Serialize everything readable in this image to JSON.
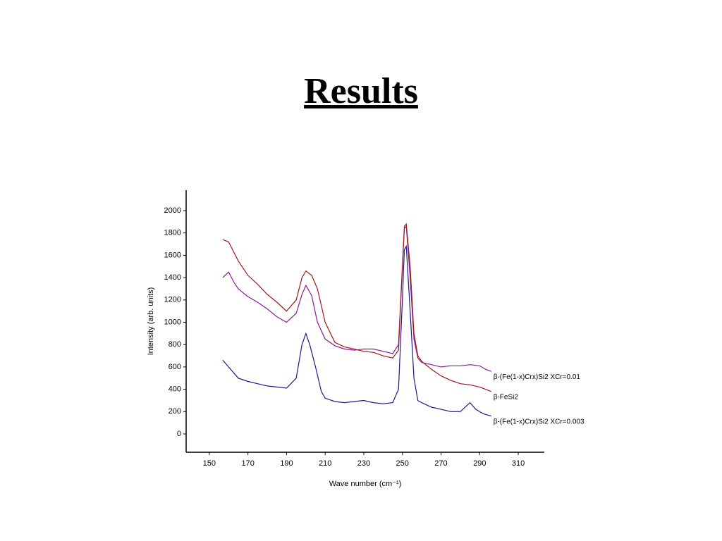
{
  "title": "Results",
  "chart_data": {
    "type": "line",
    "xlabel": "Wave number (cm⁻¹)",
    "ylabel": "Intensity (arb. units)",
    "xlim": [
      138,
      323.5
    ],
    "ylim": [
      -164,
      2183
    ],
    "xticks": [
      150,
      170,
      190,
      210,
      230,
      250,
      270,
      290,
      310
    ],
    "yticks": [
      0,
      200,
      400,
      600,
      800,
      1000,
      1200,
      1400,
      1600,
      1800,
      2000
    ],
    "series": [
      {
        "name": "β-(Fe(1-x)Crx)Si2 XCr=0.01",
        "color": "#8b1a9b",
        "x": [
          157,
          160,
          163,
          165,
          170,
          175,
          180,
          185,
          190,
          195,
          198,
          200,
          203,
          206,
          210,
          215,
          220,
          225,
          230,
          235,
          240,
          245,
          248,
          250,
          251,
          252,
          254,
          256,
          258,
          260,
          265,
          270,
          275,
          280,
          285,
          290,
          293,
          296
        ],
        "values": [
          1400,
          1450,
          1350,
          1300,
          1230,
          1180,
          1120,
          1050,
          1000,
          1080,
          1250,
          1330,
          1240,
          1000,
          850,
          790,
          760,
          750,
          760,
          760,
          740,
          720,
          800,
          1500,
          1840,
          1860,
          1400,
          850,
          680,
          640,
          620,
          600,
          610,
          610,
          620,
          610,
          580,
          560
        ]
      },
      {
        "name": "β-FeSi2",
        "color": "#a01818",
        "x": [
          157,
          160,
          165,
          170,
          175,
          180,
          185,
          190,
          195,
          198,
          200,
          203,
          206,
          210,
          215,
          220,
          225,
          230,
          235,
          240,
          245,
          248,
          250,
          251,
          252,
          254,
          256,
          258,
          260,
          265,
          270,
          275,
          280,
          285,
          290,
          293,
          296
        ],
        "values": [
          1740,
          1720,
          1550,
          1420,
          1340,
          1250,
          1180,
          1100,
          1200,
          1400,
          1460,
          1420,
          1300,
          1000,
          820,
          780,
          760,
          740,
          730,
          700,
          680,
          750,
          1500,
          1860,
          1880,
          1500,
          900,
          700,
          650,
          580,
          520,
          480,
          450,
          440,
          420,
          400,
          380
        ]
      },
      {
        "name": "β-(Fe(1-x)Crx)Si2 XCr=0.003",
        "color": "#1a1a8c",
        "x": [
          157,
          160,
          165,
          170,
          175,
          180,
          185,
          190,
          195,
          198,
          200,
          202,
          205,
          208,
          210,
          215,
          220,
          225,
          230,
          235,
          240,
          245,
          248,
          250,
          251,
          252,
          254,
          256,
          258,
          260,
          265,
          270,
          275,
          280,
          285,
          288,
          292,
          296
        ],
        "values": [
          660,
          600,
          500,
          470,
          450,
          430,
          420,
          410,
          500,
          800,
          900,
          800,
          600,
          380,
          320,
          290,
          280,
          290,
          300,
          280,
          270,
          280,
          400,
          1200,
          1650,
          1680,
          1100,
          500,
          300,
          280,
          240,
          220,
          200,
          200,
          280,
          220,
          180,
          160
        ]
      }
    ]
  }
}
